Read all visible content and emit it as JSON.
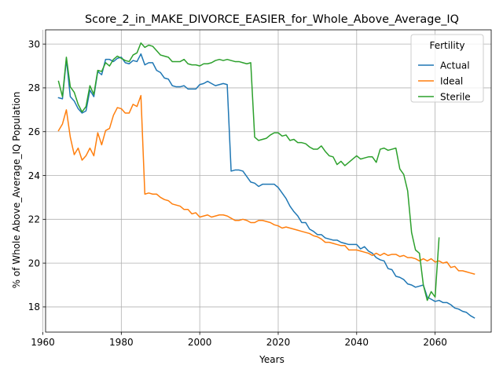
{
  "chart_data": {
    "type": "line",
    "title": "Score_2_in_MAKE_DIVORCE_EASIER_for_Whole_Above_Average_IQ",
    "xlabel": "Years",
    "ylabel": "% of Whole Above_Average_IQ Population",
    "xlim": [
      1960.7,
      2074.3
    ],
    "ylim": [
      16.85,
      30.65
    ],
    "xticks": [
      1960,
      1980,
      2000,
      2020,
      2040,
      2060
    ],
    "yticks": [
      18,
      20,
      22,
      24,
      26,
      28,
      30
    ],
    "grid": true,
    "legend": {
      "title": "Fertility",
      "position": "top-right"
    },
    "series": [
      {
        "name": "Actual",
        "color": "#1f77b4",
        "points": [
          [
            1964,
            27.55
          ],
          [
            1965,
            27.5
          ],
          [
            1966,
            29.3
          ],
          [
            1967,
            27.6
          ],
          [
            1968,
            27.4
          ],
          [
            1969,
            27.05
          ],
          [
            1970,
            26.85
          ],
          [
            1971,
            26.95
          ],
          [
            1972,
            27.9
          ],
          [
            1973,
            27.6
          ],
          [
            1974,
            28.75
          ],
          [
            1975,
            28.6
          ],
          [
            1976,
            29.3
          ],
          [
            1977,
            29.3
          ],
          [
            1978,
            29.2
          ],
          [
            1979,
            29.35
          ],
          [
            1980,
            29.4
          ],
          [
            1981,
            29.15
          ],
          [
            1982,
            29.1
          ],
          [
            1983,
            29.25
          ],
          [
            1984,
            29.2
          ],
          [
            1985,
            29.55
          ],
          [
            1986,
            29.05
          ],
          [
            1987,
            29.15
          ],
          [
            1988,
            29.15
          ],
          [
            1989,
            28.8
          ],
          [
            1990,
            28.7
          ],
          [
            1991,
            28.45
          ],
          [
            1992,
            28.4
          ],
          [
            1993,
            28.1
          ],
          [
            1994,
            28.05
          ],
          [
            1995,
            28.05
          ],
          [
            1996,
            28.1
          ],
          [
            1997,
            27.95
          ],
          [
            1998,
            27.95
          ],
          [
            1999,
            27.95
          ],
          [
            2000,
            28.15
          ],
          [
            2001,
            28.2
          ],
          [
            2002,
            28.3
          ],
          [
            2003,
            28.2
          ],
          [
            2004,
            28.1
          ],
          [
            2005,
            28.15
          ],
          [
            2006,
            28.2
          ],
          [
            2007,
            28.15
          ],
          [
            2008,
            24.2
          ],
          [
            2009,
            24.25
          ],
          [
            2010,
            24.25
          ],
          [
            2011,
            24.2
          ],
          [
            2012,
            23.95
          ],
          [
            2013,
            23.7
          ],
          [
            2014,
            23.65
          ],
          [
            2015,
            23.5
          ],
          [
            2016,
            23.6
          ],
          [
            2017,
            23.6
          ],
          [
            2018,
            23.6
          ],
          [
            2019,
            23.6
          ],
          [
            2020,
            23.45
          ],
          [
            2021,
            23.2
          ],
          [
            2022,
            22.95
          ],
          [
            2023,
            22.6
          ],
          [
            2024,
            22.35
          ],
          [
            2025,
            22.15
          ],
          [
            2026,
            21.85
          ],
          [
            2027,
            21.85
          ],
          [
            2028,
            21.55
          ],
          [
            2029,
            21.45
          ],
          [
            2030,
            21.3
          ],
          [
            2031,
            21.3
          ],
          [
            2032,
            21.15
          ],
          [
            2033,
            21.1
          ],
          [
            2034,
            21.05
          ],
          [
            2035,
            21.05
          ],
          [
            2036,
            20.95
          ],
          [
            2037,
            20.9
          ],
          [
            2038,
            20.85
          ],
          [
            2039,
            20.85
          ],
          [
            2040,
            20.85
          ],
          [
            2041,
            20.65
          ],
          [
            2042,
            20.75
          ],
          [
            2043,
            20.55
          ],
          [
            2044,
            20.45
          ],
          [
            2045,
            20.25
          ],
          [
            2046,
            20.15
          ],
          [
            2047,
            20.1
          ],
          [
            2048,
            19.75
          ],
          [
            2049,
            19.7
          ],
          [
            2050,
            19.4
          ],
          [
            2051,
            19.35
          ],
          [
            2052,
            19.25
          ],
          [
            2053,
            19.05
          ],
          [
            2054,
            19.0
          ],
          [
            2055,
            18.9
          ],
          [
            2056,
            18.95
          ],
          [
            2057,
            19.0
          ],
          [
            2058,
            18.45
          ],
          [
            2059,
            18.35
          ],
          [
            2060,
            18.25
          ],
          [
            2061,
            18.3
          ],
          [
            2062,
            18.2
          ],
          [
            2063,
            18.2
          ],
          [
            2064,
            18.1
          ],
          [
            2065,
            17.95
          ],
          [
            2066,
            17.9
          ],
          [
            2067,
            17.8
          ],
          [
            2068,
            17.75
          ],
          [
            2069,
            17.6
          ],
          [
            2070,
            17.5
          ]
        ]
      },
      {
        "name": "Ideal",
        "color": "#ff7f0e",
        "points": [
          [
            1964,
            26.05
          ],
          [
            1965,
            26.35
          ],
          [
            1966,
            27.0
          ],
          [
            1967,
            25.75
          ],
          [
            1968,
            24.95
          ],
          [
            1969,
            25.25
          ],
          [
            1970,
            24.7
          ],
          [
            1971,
            24.9
          ],
          [
            1972,
            25.25
          ],
          [
            1973,
            24.9
          ],
          [
            1974,
            25.95
          ],
          [
            1975,
            25.4
          ],
          [
            1976,
            26.05
          ],
          [
            1977,
            26.15
          ],
          [
            1978,
            26.75
          ],
          [
            1979,
            27.1
          ],
          [
            1980,
            27.05
          ],
          [
            1981,
            26.85
          ],
          [
            1982,
            26.85
          ],
          [
            1983,
            27.25
          ],
          [
            1984,
            27.15
          ],
          [
            1985,
            27.65
          ],
          [
            1986,
            23.15
          ],
          [
            1987,
            23.2
          ],
          [
            1988,
            23.15
          ],
          [
            1989,
            23.15
          ],
          [
            1990,
            23.0
          ],
          [
            1991,
            22.9
          ],
          [
            1992,
            22.85
          ],
          [
            1993,
            22.7
          ],
          [
            1994,
            22.65
          ],
          [
            1995,
            22.6
          ],
          [
            1996,
            22.45
          ],
          [
            1997,
            22.45
          ],
          [
            1998,
            22.25
          ],
          [
            1999,
            22.3
          ],
          [
            2000,
            22.1
          ],
          [
            2001,
            22.15
          ],
          [
            2002,
            22.2
          ],
          [
            2003,
            22.1
          ],
          [
            2004,
            22.15
          ],
          [
            2005,
            22.2
          ],
          [
            2006,
            22.2
          ],
          [
            2007,
            22.15
          ],
          [
            2008,
            22.05
          ],
          [
            2009,
            21.95
          ],
          [
            2010,
            21.95
          ],
          [
            2011,
            22.0
          ],
          [
            2012,
            21.95
          ],
          [
            2013,
            21.85
          ],
          [
            2014,
            21.85
          ],
          [
            2015,
            21.95
          ],
          [
            2016,
            21.95
          ],
          [
            2017,
            21.9
          ],
          [
            2018,
            21.85
          ],
          [
            2019,
            21.75
          ],
          [
            2020,
            21.7
          ],
          [
            2021,
            21.6
          ],
          [
            2022,
            21.65
          ],
          [
            2023,
            21.6
          ],
          [
            2024,
            21.55
          ],
          [
            2025,
            21.5
          ],
          [
            2026,
            21.45
          ],
          [
            2027,
            21.4
          ],
          [
            2028,
            21.35
          ],
          [
            2029,
            21.25
          ],
          [
            2030,
            21.2
          ],
          [
            2031,
            21.1
          ],
          [
            2032,
            20.95
          ],
          [
            2033,
            20.95
          ],
          [
            2034,
            20.9
          ],
          [
            2035,
            20.85
          ],
          [
            2036,
            20.8
          ],
          [
            2037,
            20.8
          ],
          [
            2038,
            20.6
          ],
          [
            2039,
            20.6
          ],
          [
            2040,
            20.6
          ],
          [
            2041,
            20.55
          ],
          [
            2042,
            20.5
          ],
          [
            2043,
            20.45
          ],
          [
            2044,
            20.35
          ],
          [
            2045,
            20.45
          ],
          [
            2046,
            20.35
          ],
          [
            2047,
            20.45
          ],
          [
            2048,
            20.35
          ],
          [
            2049,
            20.4
          ],
          [
            2050,
            20.4
          ],
          [
            2051,
            20.3
          ],
          [
            2052,
            20.35
          ],
          [
            2053,
            20.25
          ],
          [
            2054,
            20.25
          ],
          [
            2055,
            20.2
          ],
          [
            2056,
            20.1
          ],
          [
            2057,
            20.2
          ],
          [
            2058,
            20.1
          ],
          [
            2059,
            20.2
          ],
          [
            2060,
            20.05
          ],
          [
            2061,
            20.1
          ],
          [
            2062,
            20.0
          ],
          [
            2063,
            20.05
          ],
          [
            2064,
            19.8
          ],
          [
            2065,
            19.85
          ],
          [
            2066,
            19.65
          ],
          [
            2067,
            19.65
          ],
          [
            2068,
            19.6
          ],
          [
            2069,
            19.55
          ],
          [
            2070,
            19.5
          ]
        ]
      },
      {
        "name": "Sterile",
        "color": "#2ca02c",
        "points": [
          [
            1964,
            28.3
          ],
          [
            1965,
            27.6
          ],
          [
            1966,
            29.4
          ],
          [
            1967,
            28.05
          ],
          [
            1968,
            27.8
          ],
          [
            1969,
            27.25
          ],
          [
            1970,
            26.9
          ],
          [
            1971,
            27.15
          ],
          [
            1972,
            28.1
          ],
          [
            1973,
            27.7
          ],
          [
            1974,
            28.8
          ],
          [
            1975,
            28.75
          ],
          [
            1976,
            29.15
          ],
          [
            1977,
            29.0
          ],
          [
            1978,
            29.3
          ],
          [
            1979,
            29.45
          ],
          [
            1980,
            29.35
          ],
          [
            1981,
            29.25
          ],
          [
            1982,
            29.2
          ],
          [
            1983,
            29.5
          ],
          [
            1984,
            29.6
          ],
          [
            1985,
            30.05
          ],
          [
            1986,
            29.85
          ],
          [
            1987,
            29.95
          ],
          [
            1988,
            29.9
          ],
          [
            1989,
            29.7
          ],
          [
            1990,
            29.5
          ],
          [
            1991,
            29.45
          ],
          [
            1992,
            29.4
          ],
          [
            1993,
            29.2
          ],
          [
            1994,
            29.2
          ],
          [
            1995,
            29.2
          ],
          [
            1996,
            29.3
          ],
          [
            1997,
            29.1
          ],
          [
            1998,
            29.05
          ],
          [
            1999,
            29.05
          ],
          [
            2000,
            29.0
          ],
          [
            2001,
            29.1
          ],
          [
            2002,
            29.1
          ],
          [
            2003,
            29.15
          ],
          [
            2004,
            29.25
          ],
          [
            2005,
            29.3
          ],
          [
            2006,
            29.25
          ],
          [
            2007,
            29.3
          ],
          [
            2008,
            29.25
          ],
          [
            2009,
            29.2
          ],
          [
            2010,
            29.2
          ],
          [
            2011,
            29.15
          ],
          [
            2012,
            29.1
          ],
          [
            2013,
            29.15
          ],
          [
            2014,
            25.75
          ],
          [
            2015,
            25.6
          ],
          [
            2016,
            25.65
          ],
          [
            2017,
            25.7
          ],
          [
            2018,
            25.85
          ],
          [
            2019,
            25.95
          ],
          [
            2020,
            25.95
          ],
          [
            2021,
            25.8
          ],
          [
            2022,
            25.85
          ],
          [
            2023,
            25.6
          ],
          [
            2024,
            25.65
          ],
          [
            2025,
            25.5
          ],
          [
            2026,
            25.5
          ],
          [
            2027,
            25.45
          ],
          [
            2028,
            25.3
          ],
          [
            2029,
            25.2
          ],
          [
            2030,
            25.2
          ],
          [
            2031,
            25.35
          ],
          [
            2032,
            25.1
          ],
          [
            2033,
            24.9
          ],
          [
            2034,
            24.85
          ],
          [
            2035,
            24.5
          ],
          [
            2036,
            24.65
          ],
          [
            2037,
            24.45
          ],
          [
            2038,
            24.6
          ],
          [
            2039,
            24.75
          ],
          [
            2040,
            24.9
          ],
          [
            2041,
            24.75
          ],
          [
            2042,
            24.8
          ],
          [
            2043,
            24.85
          ],
          [
            2044,
            24.85
          ],
          [
            2045,
            24.6
          ],
          [
            2046,
            25.2
          ],
          [
            2047,
            25.25
          ],
          [
            2048,
            25.15
          ],
          [
            2049,
            25.2
          ],
          [
            2050,
            25.25
          ],
          [
            2051,
            24.3
          ],
          [
            2052,
            24.05
          ],
          [
            2053,
            23.3
          ],
          [
            2054,
            21.4
          ],
          [
            2055,
            20.6
          ],
          [
            2056,
            20.45
          ],
          [
            2057,
            19.0
          ],
          [
            2058,
            18.3
          ],
          [
            2059,
            18.7
          ],
          [
            2060,
            18.45
          ],
          [
            2061,
            21.15
          ]
        ]
      }
    ]
  }
}
